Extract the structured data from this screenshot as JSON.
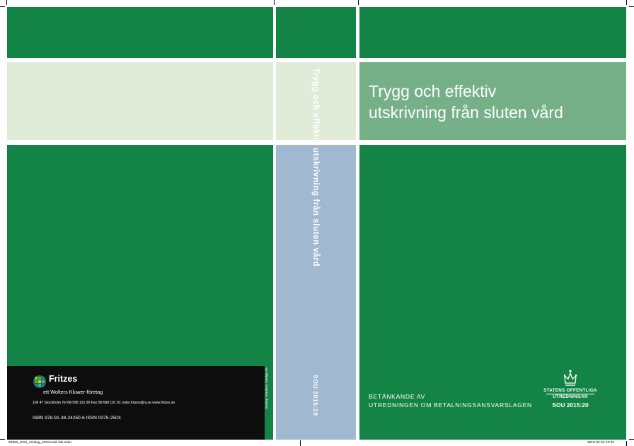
{
  "cover": {
    "title_line1": "Trygg och effektiv",
    "title_line2": "utskrivning från sluten vård",
    "committee_line1": "BETÄNKANDE AV",
    "committee_line2": "UTREDNINGEN OM BETALNINGSANSVARSLAGEN",
    "logo_line1": "STATENS OFFENTLIGA",
    "logo_line2": "UTREDNINGAR",
    "series": "SOU 2015:20"
  },
  "spine": {
    "title": "Trygg och effektiv utskrivning från sluten vård",
    "series": "SOU 2015:20",
    "credit": "Omslag: Elanders Sverige AB"
  },
  "back": {
    "publisher": "Fritzes",
    "publisher_sub": "ett Wolters Kluwer-företag",
    "address": "106 47 Stockholm   Tel 08-598 191 90   Fax 08-598 191 91   order.fritzes@nj.se   www.fritzes.se",
    "isbn": "ISBN 978-91-38-24250-6   ISSN 0375-250X"
  },
  "slug": {
    "left": "93962_SOU_omslag_2015.indd  Alla sidor",
    "right": "2015-03-23   13:32"
  },
  "colors": {
    "green": "#148446",
    "pale_green": "#e0ebd8",
    "sage": "#76b088",
    "spine_blue": "#a0b8d0",
    "black_panel": "#0d0d0d"
  }
}
